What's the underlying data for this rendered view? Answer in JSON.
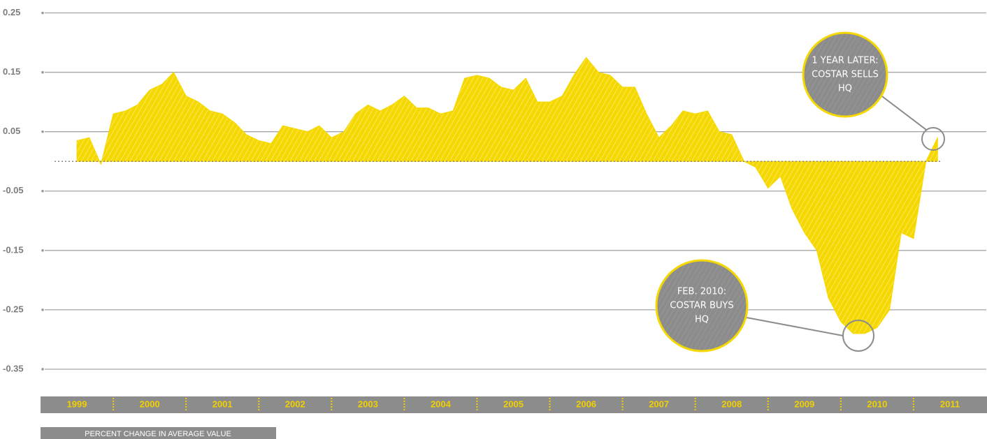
{
  "chart_data": {
    "type": "area",
    "y_label": "PERCENT CHANGE IN AVERAGE VALUE",
    "x": [
      1999.5,
      1999.67,
      1999.83,
      2000.0,
      2000.17,
      2000.33,
      2000.5,
      2000.67,
      2000.83,
      2001.0,
      2001.17,
      2001.33,
      2001.5,
      2001.67,
      2001.83,
      2002.0,
      2002.17,
      2002.33,
      2002.5,
      2002.67,
      2002.83,
      2003.0,
      2003.17,
      2003.33,
      2003.5,
      2003.67,
      2003.83,
      2004.0,
      2004.17,
      2004.33,
      2004.5,
      2004.67,
      2004.83,
      2005.0,
      2005.17,
      2005.33,
      2005.5,
      2005.67,
      2005.83,
      2006.0,
      2006.17,
      2006.33,
      2006.5,
      2006.67,
      2006.83,
      2007.0,
      2007.17,
      2007.33,
      2007.5,
      2007.67,
      2007.83,
      2008.0,
      2008.17,
      2008.33,
      2008.5,
      2008.67,
      2008.83,
      2009.0,
      2009.17,
      2009.33,
      2009.5,
      2009.67,
      2009.83,
      2010.0,
      2010.17,
      2010.33,
      2010.5,
      2010.67,
      2010.83,
      2011.0,
      2011.17,
      2011.33
    ],
    "values": [
      0.035,
      0.04,
      -0.005,
      0.08,
      0.085,
      0.095,
      0.12,
      0.13,
      0.15,
      0.11,
      0.1,
      0.085,
      0.08,
      0.065,
      0.045,
      0.035,
      0.03,
      0.06,
      0.055,
      0.05,
      0.06,
      0.04,
      0.05,
      0.08,
      0.095,
      0.085,
      0.095,
      0.11,
      0.09,
      0.09,
      0.08,
      0.085,
      0.14,
      0.145,
      0.14,
      0.125,
      0.12,
      0.14,
      0.1,
      0.1,
      0.11,
      0.145,
      0.175,
      0.15,
      0.145,
      0.125,
      0.125,
      0.08,
      0.04,
      0.06,
      0.085,
      0.08,
      0.085,
      0.05,
      0.045,
      0.0,
      -0.01,
      -0.045,
      -0.025,
      -0.08,
      -0.12,
      -0.15,
      -0.23,
      -0.27,
      -0.29,
      -0.29,
      -0.28,
      -0.25,
      -0.12,
      -0.13,
      0.0,
      0.04
    ],
    "color": "#f5d800",
    "xlim": [
      1999,
      2012
    ],
    "xticks": [
      1999,
      2000,
      2001,
      2002,
      2003,
      2004,
      2005,
      2006,
      2007,
      2008,
      2009,
      2010,
      2011
    ],
    "ylim": [
      -0.37,
      0.26
    ],
    "yticks": [
      0.25,
      0.15,
      0.05,
      -0.05,
      -0.15,
      -0.25,
      -0.35
    ],
    "grid": true,
    "annotations": [
      {
        "lines": [
          "1 YEAR LATER:",
          "COSTAR SELLS",
          "HQ"
        ]
      },
      {
        "lines": [
          "FEB. 2010:",
          "COSTAR BUYS",
          "HQ"
        ]
      }
    ]
  }
}
